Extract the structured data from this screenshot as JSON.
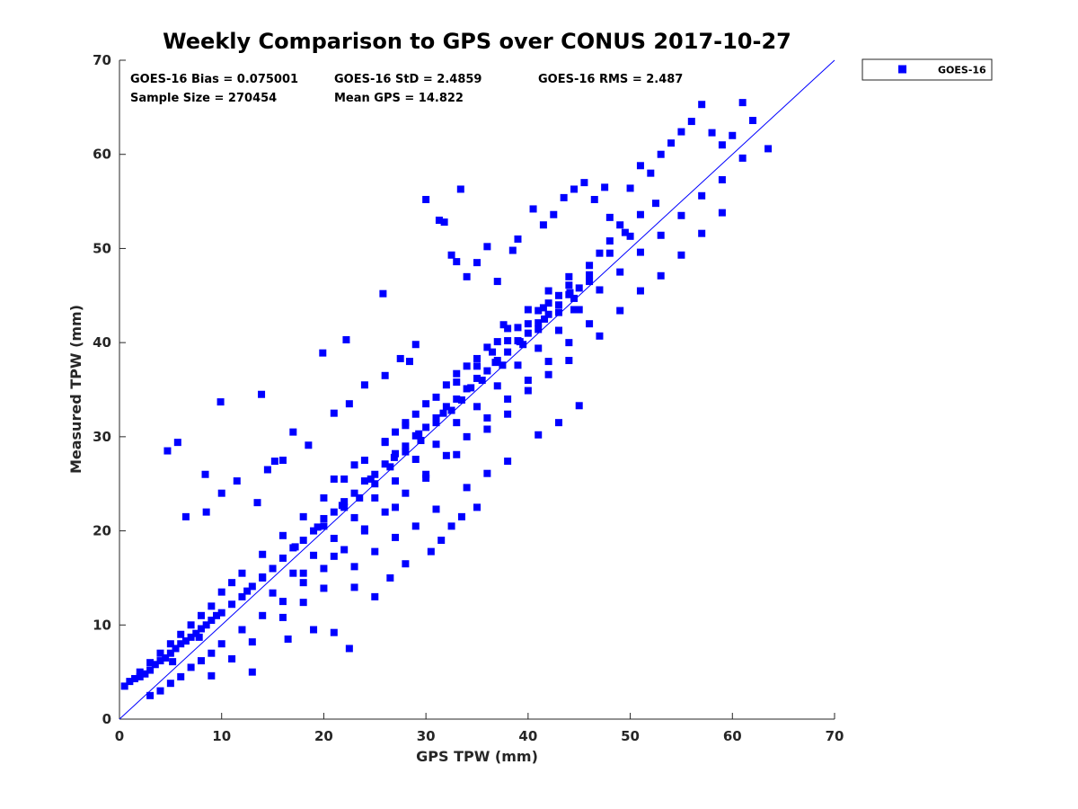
{
  "chart_data": {
    "type": "scatter",
    "title": "Weekly Comparison to GPS over CONUS 2017-10-27",
    "xlabel": "GPS TPW (mm)",
    "ylabel": "Measured TPW (mm)",
    "xlim": [
      0,
      70
    ],
    "ylim": [
      0,
      70
    ],
    "xticks": [
      "0",
      "10",
      "20",
      "30",
      "40",
      "50",
      "60",
      "70"
    ],
    "yticks": [
      "0",
      "10",
      "20",
      "30",
      "40",
      "50",
      "60",
      "70"
    ],
    "grid": false,
    "legend_position": "top-right outside",
    "reference_line": {
      "x": [
        0,
        70
      ],
      "y": [
        0,
        70
      ]
    },
    "series": [
      {
        "name": "GOES-16",
        "color": "#0000ff",
        "marker": "square",
        "x": [
          0.5,
          1,
          1.5,
          2,
          2.5,
          3,
          3.5,
          4,
          4.5,
          5,
          5.5,
          6,
          6.5,
          7,
          7.5,
          8,
          8.5,
          9,
          9.5,
          10,
          11,
          12,
          13,
          14,
          15,
          16,
          17,
          18,
          19,
          20,
          21,
          22,
          23,
          24,
          25,
          26,
          27,
          28,
          29,
          30,
          31,
          32,
          33,
          34,
          35,
          36,
          37,
          38,
          39,
          40,
          41,
          42,
          43,
          44,
          45,
          46,
          2,
          3,
          4,
          5,
          6,
          7,
          8,
          9,
          10,
          11,
          12,
          14,
          16,
          18,
          20,
          22,
          24,
          26,
          28,
          30,
          32,
          34,
          36,
          38,
          40,
          42,
          44,
          3,
          4,
          5,
          6,
          7,
          8,
          9,
          10,
          12,
          14,
          16,
          18,
          20,
          22,
          24,
          26,
          28,
          30,
          32,
          34,
          36,
          38,
          40,
          42,
          44,
          46,
          4.7,
          5.7,
          8.4,
          9.9,
          13.9,
          15.2,
          19.9,
          22.2,
          25.8,
          28.4,
          33.4,
          37.6,
          44.5,
          6.5,
          8.5,
          10,
          11.5,
          13.5,
          14.5,
          16,
          17,
          18.5,
          21,
          22.5,
          24,
          26,
          27.5,
          29,
          13,
          16.5,
          19,
          21,
          22.5,
          23,
          25,
          26.5,
          28,
          30.5,
          31.5,
          32.5,
          33.5,
          35,
          30,
          31.3,
          31.8,
          32.5,
          33,
          34,
          35,
          36,
          37,
          38.5,
          39,
          40.5,
          41.5,
          42.5,
          43.5,
          44.5,
          45.5,
          46.5,
          47.5,
          48,
          49,
          50,
          51,
          52,
          53,
          54,
          55,
          56,
          57,
          58,
          59,
          60,
          61,
          62,
          63.5,
          21,
          23,
          26,
          28,
          33,
          35,
          36.5,
          38,
          40,
          41.5,
          43,
          46,
          47,
          48,
          49.5,
          51,
          52.5,
          9,
          11,
          13,
          16,
          18,
          20,
          23,
          25,
          27,
          29,
          31,
          34,
          36,
          38,
          41,
          43,
          45,
          27,
          29,
          31,
          33,
          35,
          37,
          39,
          41,
          42,
          44,
          46,
          48,
          50,
          18,
          21,
          24,
          27,
          30,
          33,
          36,
          38,
          40,
          42,
          44,
          47,
          49,
          51,
          53,
          55,
          57,
          59,
          20,
          22,
          23.5,
          25,
          26.5,
          28,
          29.5,
          31,
          32.5,
          33.5,
          35.5,
          37.5,
          39.5,
          41,
          43,
          44.5,
          5.2,
          7.8,
          12.5,
          14,
          17.2,
          19.4,
          21.8,
          24.6,
          26.9,
          29.3,
          31.7,
          34.4,
          36.8,
          39.2,
          41.6,
          44.1,
          15,
          17,
          19,
          21,
          23,
          25,
          27,
          29,
          31,
          33,
          35,
          37,
          39,
          41,
          43,
          45,
          47,
          49,
          51,
          53,
          55,
          57,
          59,
          61
        ],
        "y": [
          3.5,
          4,
          4.3,
          4.5,
          4.8,
          5.2,
          5.8,
          6.2,
          6.5,
          7,
          7.5,
          8,
          8.3,
          8.7,
          9.1,
          9.6,
          10,
          10.5,
          11,
          11.3,
          12.2,
          13,
          14.1,
          15,
          16,
          17.1,
          18.2,
          19,
          20,
          21.3,
          22,
          23.1,
          24,
          25.3,
          26,
          27.1,
          28.2,
          29,
          30.1,
          31,
          32,
          33.2,
          34,
          35.1,
          36.2,
          37,
          38.1,
          39,
          40.2,
          41,
          42.1,
          43,
          44,
          45.1,
          45.8,
          46.5,
          5,
          6,
          7,
          8,
          9,
          10,
          11,
          12,
          13.5,
          14.5,
          15.5,
          17.5,
          19.5,
          21.5,
          23.5,
          25.5,
          27.5,
          29.5,
          31.5,
          33.5,
          35.5,
          37.5,
          39.5,
          41.5,
          43.5,
          45.5,
          47,
          2.5,
          3,
          3.8,
          4.5,
          5.5,
          6.2,
          7,
          8,
          9.5,
          11,
          12.5,
          14.5,
          16,
          18,
          20,
          22,
          24,
          26,
          28,
          30,
          32,
          34,
          36,
          38,
          40,
          42,
          28.5,
          29.4,
          26,
          33.7,
          34.5,
          27.4,
          38.9,
          40.3,
          45.2,
          38,
          56.3,
          41.9,
          43.5,
          21.5,
          22,
          24,
          25.3,
          23,
          26.5,
          27.5,
          30.5,
          29.1,
          32.5,
          33.5,
          35.5,
          36.5,
          38.3,
          39.8,
          5,
          8.5,
          9.5,
          9.2,
          7.5,
          14,
          13,
          15,
          16.5,
          17.8,
          19,
          20.5,
          21.5,
          22.5,
          55.2,
          53,
          52.8,
          49.3,
          48.6,
          47,
          48.5,
          50.2,
          46.5,
          49.8,
          51,
          54.2,
          52.5,
          53.6,
          55.4,
          56.3,
          57,
          55.2,
          56.5,
          53.3,
          52.5,
          56.4,
          58.8,
          58,
          60,
          61.2,
          62.4,
          63.5,
          65.3,
          62.3,
          61,
          62,
          65.5,
          63.6,
          60.6,
          25.5,
          27,
          29.4,
          31.2,
          35.8,
          37.5,
          39,
          40.2,
          42,
          43.7,
          45,
          48.2,
          49.5,
          50.8,
          51.7,
          53.6,
          54.8,
          4.6,
          6.4,
          8.2,
          10.8,
          12.4,
          13.9,
          16.2,
          17.8,
          19.3,
          20.5,
          22.3,
          24.6,
          26.1,
          27.4,
          30.2,
          31.5,
          33.3,
          30.5,
          32.4,
          34.2,
          36.7,
          38.3,
          40.1,
          41.6,
          43.4,
          44.2,
          46.1,
          47.2,
          49.5,
          51.3,
          15.5,
          17.3,
          20.2,
          22.5,
          25.6,
          28.1,
          30.8,
          32.4,
          34.9,
          36.6,
          38.1,
          40.7,
          43.4,
          45.5,
          47.1,
          49.3,
          51.6,
          53.8,
          20.5,
          22.5,
          23.5,
          25,
          26.8,
          28.4,
          29.6,
          31.5,
          32.8,
          33.9,
          36,
          37.6,
          39.8,
          41.4,
          43.2,
          44.7,
          6.1,
          8.7,
          13.6,
          15.1,
          18.3,
          20.4,
          22.7,
          25.5,
          27.8,
          30.3,
          32.5,
          35.2,
          37.9,
          40.1,
          42.5,
          45.3,
          13.4,
          15.5,
          17.4,
          19.2,
          21.4,
          23.5,
          25.3,
          27.6,
          29.2,
          31.5,
          33.2,
          35.4,
          37.6,
          39.4,
          41.3,
          43.5,
          45.6,
          47.5,
          49.6,
          51.4,
          53.5,
          55.6,
          57.3,
          59.6
        ]
      }
    ],
    "annotations": [
      "GOES-16 Bias = 0.075001",
      "GOES-16 StD = 2.4859",
      "GOES-16 RMS = 2.487",
      "Sample Size = 270454",
      "Mean GPS = 14.822"
    ]
  }
}
